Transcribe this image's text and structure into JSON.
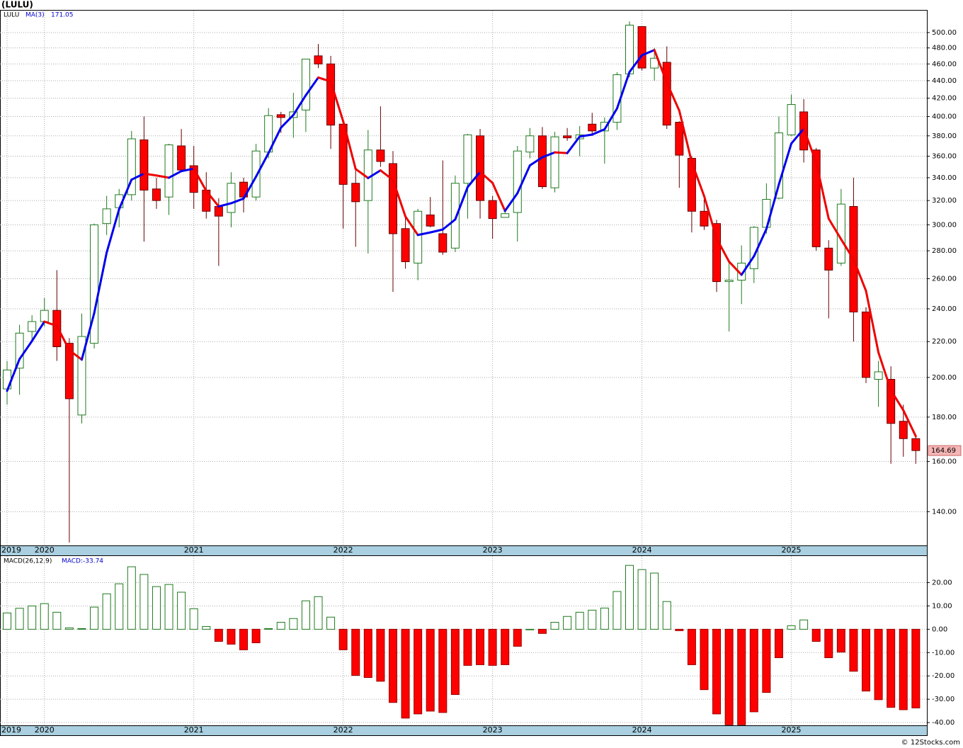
{
  "chart_data": [
    {
      "type": "candlestick",
      "title": "(LULU)",
      "symbol": "LULU",
      "categories": [
        "2019",
        null,
        null,
        "2020",
        null,
        null,
        null,
        null,
        null,
        null,
        null,
        null,
        null,
        null,
        null,
        "2021",
        null,
        null,
        null,
        null,
        null,
        null,
        null,
        null,
        null,
        null,
        null,
        "2022",
        null,
        null,
        null,
        null,
        null,
        null,
        null,
        null,
        null,
        null,
        null,
        "2023",
        null,
        null,
        null,
        null,
        null,
        null,
        null,
        null,
        null,
        null,
        null,
        "2024",
        null,
        null,
        null,
        null,
        null,
        null,
        null,
        null,
        null,
        null,
        null,
        "2025",
        null,
        null,
        null,
        null,
        null,
        null,
        null,
        null,
        null,
        null
      ],
      "open": [
        194,
        205,
        226,
        232,
        239,
        219,
        181,
        219,
        301,
        314,
        325,
        376,
        330,
        323,
        370,
        351,
        329,
        315,
        310,
        336,
        323,
        364,
        402,
        399,
        407,
        470,
        460,
        392,
        335,
        320,
        366,
        353,
        297,
        271,
        308,
        293,
        282,
        335,
        380,
        320,
        306,
        310,
        364,
        380,
        331,
        380,
        377,
        392,
        385,
        394,
        448,
        508,
        455,
        462,
        394,
        358,
        311,
        301,
        258,
        259,
        267,
        298,
        322,
        381,
        405,
        366,
        282,
        271,
        315,
        238,
        199,
        199,
        178,
        170
      ],
      "high": [
        209,
        230,
        236,
        247,
        266,
        222,
        237,
        301,
        324,
        330,
        385,
        400,
        340,
        372,
        387,
        370,
        345,
        322,
        345,
        340,
        372,
        409,
        405,
        426,
        466,
        485,
        470,
        393,
        347,
        386,
        411,
        365,
        306,
        313,
        323,
        356,
        342,
        382,
        387,
        324,
        311,
        370,
        388,
        389,
        384,
        388,
        390,
        404,
        399,
        450,
        515,
        508,
        480,
        482,
        395,
        360,
        321,
        304,
        272,
        284,
        299,
        335,
        400,
        424,
        419,
        368,
        288,
        330,
        340,
        241,
        209,
        206,
        186,
        172
      ],
      "low": [
        186,
        191,
        220,
        229,
        209,
        129,
        177,
        216,
        292,
        298,
        320,
        287,
        313,
        308,
        345,
        313,
        305,
        269,
        298,
        310,
        320,
        358,
        383,
        378,
        384,
        455,
        367,
        297,
        283,
        278,
        350,
        251,
        267,
        259,
        298,
        277,
        279,
        305,
        305,
        289,
        306,
        287,
        358,
        330,
        327,
        375,
        360,
        380,
        353,
        386,
        444,
        452,
        440,
        387,
        331,
        294,
        296,
        251,
        226,
        243,
        257,
        293,
        321,
        380,
        354,
        280,
        234,
        269,
        220,
        197,
        185,
        159,
        162,
        159
      ],
      "close": [
        204,
        225,
        232,
        239,
        217,
        189,
        223,
        300,
        313,
        325,
        377,
        329,
        320,
        371,
        347,
        327,
        311,
        307,
        335,
        323,
        365,
        401,
        399,
        405,
        466,
        460,
        391,
        334,
        319,
        366,
        355,
        293,
        272,
        311,
        299,
        279,
        335,
        381,
        320,
        305,
        309,
        365,
        380,
        332,
        379,
        378,
        381,
        385,
        394,
        447,
        510,
        455,
        467,
        391,
        361,
        311,
        299,
        258,
        259,
        271,
        298,
        321,
        383,
        413,
        366,
        283,
        266,
        317,
        238,
        200,
        203,
        177,
        170,
        164.69
      ],
      "up_color": "#1f7a1f",
      "down_color": "#ff0000",
      "ma": {
        "name": "MA(3)",
        "up_color": "#0000ee",
        "down_color": "#ee0000",
        "values": [
          193,
          210,
          220.3,
          232,
          229.3,
          215,
          209.7,
          237.3,
          278.7,
          312.7,
          338.3,
          343.7,
          342,
          340,
          346,
          348.3,
          328.3,
          315,
          317.7,
          321.7,
          341,
          363,
          388.3,
          401.7,
          423.3,
          443.7,
          439,
          395,
          348,
          339.7,
          346.7,
          338,
          306.7,
          292,
          294,
          296.3,
          304.3,
          331.7,
          345.3,
          335.3,
          311.3,
          326.3,
          351.3,
          359,
          363.7,
          363,
          379.3,
          381.3,
          386.7,
          408.7,
          450.3,
          470.7,
          477.3,
          437.7,
          406.3,
          354.3,
          323.7,
          289.3,
          272,
          262.7,
          276,
          296.7,
          334,
          372.3,
          387.3,
          354,
          305,
          288.7,
          273.7,
          251.7,
          213.7,
          193.3,
          183.3,
          171.05
        ]
      },
      "log_scale": true,
      "grid": true,
      "ylim": [
        128,
        530
      ],
      "yticks": [
        {
          "value": 140,
          "label": "140.00"
        },
        {
          "value": 160,
          "label": "160.00"
        },
        {
          "value": 180,
          "label": "180.00"
        },
        {
          "value": 200,
          "label": "200.00"
        },
        {
          "value": 220,
          "label": "220.00"
        },
        {
          "value": 240,
          "label": "240.00"
        },
        {
          "value": 260,
          "label": "260.00"
        },
        {
          "value": 280,
          "label": "280.00"
        },
        {
          "value": 300,
          "label": "300.00"
        },
        {
          "value": 320,
          "label": "320.00"
        },
        {
          "value": 340,
          "label": "340.00"
        },
        {
          "value": 360,
          "label": "360.00"
        },
        {
          "value": 380,
          "label": "380.00"
        },
        {
          "value": 400,
          "label": "400.00"
        },
        {
          "value": 420,
          "label": "420.00"
        },
        {
          "value": 440,
          "label": "440.00"
        },
        {
          "value": 460,
          "label": "460.00"
        },
        {
          "value": 480,
          "label": "480.00"
        },
        {
          "value": 500,
          "label": "500.00"
        }
      ],
      "watermark": "© 12Stocks.com"
    },
    {
      "type": "histogram",
      "name": "MACD(26,12,9)",
      "legend": "MACD:-33.74",
      "values": [
        7,
        9,
        10,
        11,
        7.3,
        0.6,
        0.3,
        9.5,
        15.2,
        19.5,
        26.8,
        23.5,
        18.3,
        19.2,
        15.9,
        8.8,
        1.2,
        -5.2,
        -6.4,
        -8.8,
        -5.8,
        0.3,
        3,
        4.6,
        12.2,
        14,
        5.2,
        -8.8,
        -19.8,
        -20.7,
        -22.3,
        -31.4,
        -38.1,
        -36.3,
        -35.1,
        -35.7,
        -28,
        -15.5,
        -15.2,
        -15.5,
        -15.2,
        -7.3,
        0,
        -1.8,
        3,
        5.5,
        7.3,
        8.2,
        9.1,
        16.2,
        27.4,
        25.6,
        24.1,
        11.9,
        -0.6,
        -15.2,
        -25.9,
        -36.3,
        -41,
        -41,
        -35.4,
        -27.1,
        -12.2,
        1.5,
        4,
        -5.2,
        -12.2,
        -9.8,
        -18,
        -26.5,
        -30.2,
        -33.5,
        -34.5,
        -33.74
      ],
      "up_color": "#1f7a1f",
      "down_color": "#ff0000",
      "grid": true,
      "ylim": [
        -41.2,
        31.4
      ],
      "yticks": [
        {
          "value": 20,
          "label": "20.00"
        },
        {
          "value": 10,
          "label": "10.00"
        },
        {
          "value": 0,
          "label": "0.00"
        },
        {
          "value": -10,
          "label": "-10.00"
        },
        {
          "value": -20,
          "label": "-20.00"
        },
        {
          "value": -30,
          "label": "-30.00"
        },
        {
          "value": -40,
          "label": "-40.00"
        }
      ]
    }
  ]
}
